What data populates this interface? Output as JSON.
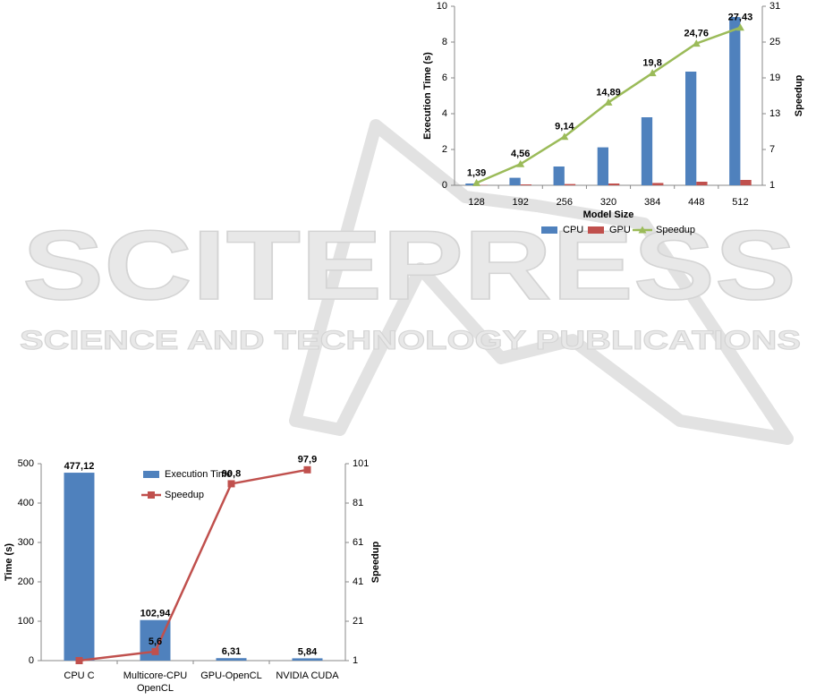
{
  "watermark": {
    "title": "SCITEPRESS",
    "subtitle": "SCIENCE AND TECHNOLOGY PUBLICATIONS"
  },
  "chart_data": [
    {
      "type": "bar",
      "y_label": "Execution Time (s)",
      "y2_label": "Speedup",
      "x_label": "Model Size",
      "categories": [
        "128",
        "192",
        "256",
        "320",
        "384",
        "448",
        "512"
      ],
      "ylim": [
        0,
        10
      ],
      "yticks": [
        0,
        2,
        4,
        6,
        8,
        10
      ],
      "y2lim": [
        1,
        31
      ],
      "y2ticks": [
        1,
        7,
        13,
        19,
        25,
        31
      ],
      "legend": "bottom",
      "series": [
        {
          "name": "CPU",
          "type": "bar",
          "color": "#4f81bd",
          "values": [
            0.1,
            0.42,
            1.05,
            2.12,
            3.8,
            6.35,
            9.4
          ]
        },
        {
          "name": "GPU",
          "type": "bar",
          "color": "#c0504d",
          "values": [
            0.02,
            0.05,
            0.07,
            0.1,
            0.13,
            0.2,
            0.3
          ]
        },
        {
          "name": "Speedup",
          "type": "line",
          "axis": "y2",
          "marker": "triangle",
          "color": "#9bbb59",
          "values": [
            1.39,
            4.56,
            9.14,
            14.89,
            19.8,
            24.76,
            27.43
          ],
          "value_labels": [
            "1,39",
            "4,56",
            "9,14",
            "14,89",
            "19,8",
            "24,76",
            "27,43"
          ]
        }
      ]
    },
    {
      "type": "bar",
      "y_label": "Time (s)",
      "y2_label": "Speedup",
      "categories": [
        "CPU C",
        "Multicore-CPU OpenCL",
        "GPU-OpenCL",
        "NVIDIA CUDA"
      ],
      "ylim": [
        0,
        500
      ],
      "yticks": [
        0,
        100,
        200,
        300,
        400,
        500
      ],
      "y2lim": [
        1,
        101
      ],
      "y2ticks": [
        1,
        21,
        41,
        61,
        81,
        101
      ],
      "legend": "top",
      "series": [
        {
          "name": "Execution Time",
          "type": "bar",
          "color": "#4f81bd",
          "values": [
            477.12,
            102.94,
            6.31,
            5.84
          ],
          "value_labels": [
            "477,12",
            "102,94",
            "6,31",
            "5,84"
          ]
        },
        {
          "name": "Speedup",
          "type": "line",
          "axis": "y2",
          "marker": "square",
          "color": "#c0504d",
          "values": [
            1,
            5.6,
            90.8,
            97.9
          ],
          "value_labels": [
            null,
            "5,6",
            "90,8",
            "97,9"
          ]
        }
      ]
    }
  ]
}
